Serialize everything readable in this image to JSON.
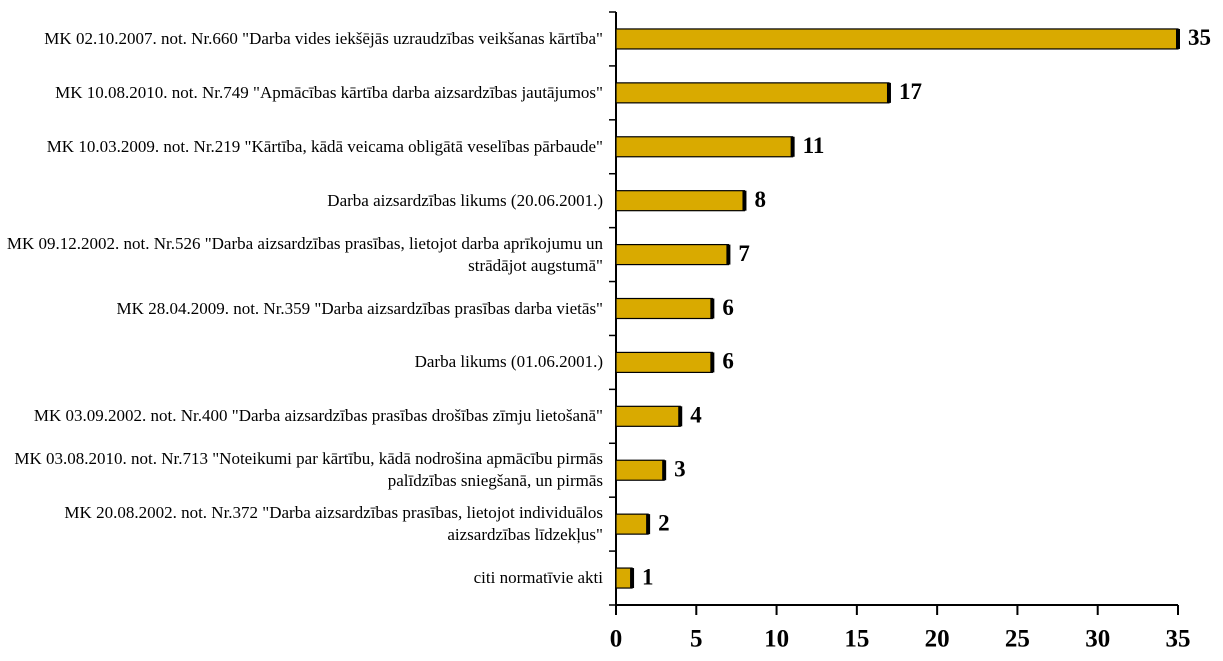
{
  "chart_data": {
    "type": "bar",
    "orientation": "horizontal",
    "categories": [
      "MK 02.10.2007. not. Nr.660 \"Darba vides iekšējās uzraudzības veikšanas kārtība\"",
      "MK 10.08.2010. not. Nr.749 \"Apmācības kārtība darba aizsardzības jautājumos\"",
      "MK 10.03.2009. not. Nr.219 \"Kārtība, kādā veicama obligātā veselības pārbaude\"",
      "Darba aizsardzības likums (20.06.2001.)",
      "MK 09.12.2002. not. Nr.526 \"Darba aizsardzības prasības, lietojot darba aprīkojumu un strādājot augstumā\"",
      "MK 28.04.2009. not. Nr.359 \"Darba aizsardzības prasības darba vietās\"",
      "Darba likums (01.06.2001.)",
      "MK 03.09.2002. not. Nr.400 \"Darba aizsardzības prasības drošības zīmju lietošanā\"",
      "MK 03.08.2010. not. Nr.713 \"Noteikumi par kārtību, kādā nodrošina apmācību pirmās palīdzības sniegšanā, un pirmās",
      "MK 20.08.2002. not. Nr.372 \"Darba aizsardzības prasības, lietojot individuālos aizsardzības līdzekļus\"",
      "citi normatīvie akti"
    ],
    "values": [
      35,
      17,
      11,
      8,
      7,
      6,
      6,
      4,
      3,
      2,
      1
    ],
    "color": "#d9aa00",
    "xlim": [
      0,
      35
    ],
    "xticks": [
      0,
      5,
      10,
      15,
      20,
      25,
      30,
      35
    ]
  }
}
